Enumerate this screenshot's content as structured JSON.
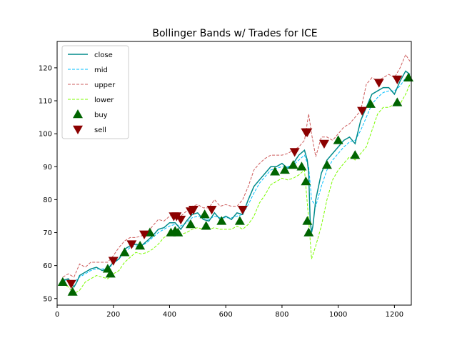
{
  "chart_data": {
    "type": "line",
    "title": "Bollinger Bands w/ Trades for ICE",
    "xlabel": "",
    "ylabel": "",
    "xlim": [
      0,
      1260
    ],
    "ylim": [
      48,
      128
    ],
    "x_ticks": [
      0,
      200,
      400,
      600,
      800,
      1000,
      1200
    ],
    "y_ticks": [
      50,
      60,
      70,
      80,
      90,
      100,
      110,
      120
    ],
    "legend_position": "upper-left",
    "grid": false,
    "colors": {
      "close": "#008b8b",
      "mid": "#00bfff",
      "upper": "#cd5c5c",
      "lower": "#7cfc00",
      "buy": "#006400",
      "sell": "#8b0000"
    },
    "series": [
      {
        "name": "close",
        "style": "solid",
        "key": "close",
        "x": [
          20,
          40,
          60,
          70,
          80,
          100,
          120,
          140,
          160,
          180,
          200,
          220,
          240,
          260,
          280,
          300,
          320,
          340,
          360,
          380,
          400,
          420,
          440,
          460,
          480,
          500,
          520,
          540,
          560,
          580,
          600,
          620,
          640,
          660,
          680,
          700,
          720,
          740,
          760,
          780,
          800,
          820,
          840,
          860,
          880,
          890,
          895,
          900,
          905,
          910,
          920,
          940,
          960,
          980,
          1000,
          1020,
          1040,
          1060,
          1080,
          1100,
          1120,
          1140,
          1160,
          1180,
          1200,
          1220,
          1240,
          1255
        ],
        "y": [
          55.5,
          56,
          53.5,
          55,
          57,
          58,
          59,
          59.5,
          58.5,
          59,
          61,
          62,
          65,
          66,
          66.5,
          66,
          67.5,
          69,
          71,
          71.5,
          73,
          73,
          71,
          73.5,
          75.5,
          76,
          74,
          73.5,
          76,
          74,
          75,
          74,
          76,
          75.5,
          80,
          84,
          86,
          88,
          90,
          90,
          91,
          89.5,
          91,
          93.5,
          95,
          92,
          88,
          74,
          70,
          72,
          80,
          88,
          92,
          94,
          96,
          98,
          99,
          97,
          104,
          108,
          112,
          113,
          114,
          114,
          112,
          116,
          119,
          118
        ]
      },
      {
        "name": "mid",
        "style": "dashed",
        "key": "mid",
        "x": [
          20,
          40,
          60,
          80,
          100,
          120,
          140,
          160,
          180,
          200,
          220,
          240,
          260,
          280,
          300,
          320,
          340,
          360,
          380,
          400,
          420,
          440,
          460,
          480,
          500,
          520,
          540,
          560,
          580,
          600,
          620,
          640,
          660,
          680,
          700,
          720,
          740,
          760,
          780,
          800,
          820,
          840,
          860,
          880,
          895,
          905,
          920,
          940,
          960,
          980,
          1000,
          1020,
          1040,
          1060,
          1080,
          1100,
          1120,
          1140,
          1160,
          1180,
          1200,
          1220,
          1240,
          1255
        ],
        "y": [
          55.5,
          55.5,
          55,
          56.5,
          57.5,
          58.5,
          59,
          59,
          59,
          60.5,
          62,
          64,
          65.5,
          66,
          66,
          67,
          68.5,
          70,
          71,
          72,
          72.5,
          72,
          73,
          74.5,
          75,
          74.5,
          74,
          75,
          74.5,
          74.5,
          74.5,
          75,
          75.5,
          78.5,
          82,
          85,
          87,
          89,
          89.5,
          90,
          90,
          90.5,
          92,
          93.5,
          90,
          80,
          78,
          84,
          89,
          92,
          94,
          96,
          97.5,
          98,
          101,
          105,
          109,
          111,
          112.5,
          113,
          113,
          114.5,
          117,
          118
        ]
      },
      {
        "name": "upper",
        "style": "dashed",
        "key": "upper",
        "x": [
          20,
          40,
          60,
          80,
          100,
          120,
          140,
          160,
          180,
          200,
          220,
          240,
          260,
          280,
          300,
          320,
          340,
          360,
          380,
          400,
          420,
          440,
          460,
          480,
          500,
          520,
          540,
          560,
          580,
          600,
          620,
          640,
          660,
          680,
          700,
          720,
          740,
          760,
          780,
          800,
          820,
          840,
          860,
          880,
          895,
          905,
          920,
          940,
          960,
          980,
          1000,
          1020,
          1040,
          1060,
          1080,
          1100,
          1120,
          1140,
          1160,
          1180,
          1200,
          1220,
          1240,
          1255
        ],
        "y": [
          56.5,
          57.5,
          56.5,
          60.5,
          59.5,
          61,
          61,
          61,
          61,
          63,
          65.5,
          67.5,
          68.5,
          68.5,
          69,
          70,
          72,
          74,
          73.5,
          75,
          76,
          75,
          76.5,
          78,
          78.5,
          77.5,
          77.5,
          80,
          78,
          78.5,
          78,
          78,
          80,
          84,
          89,
          91,
          92.5,
          93.5,
          93.5,
          93.5,
          94,
          95,
          96,
          98,
          106,
          100,
          93,
          99,
          99,
          98,
          100,
          102,
          103,
          105,
          107,
          115,
          117,
          116,
          117,
          118,
          117,
          120,
          124,
          122
        ]
      },
      {
        "name": "lower",
        "style": "dashed",
        "key": "lower",
        "x": [
          20,
          40,
          60,
          80,
          100,
          120,
          140,
          160,
          180,
          200,
          220,
          240,
          260,
          280,
          300,
          320,
          340,
          360,
          380,
          400,
          420,
          440,
          460,
          480,
          500,
          520,
          540,
          560,
          580,
          600,
          620,
          640,
          660,
          680,
          700,
          720,
          740,
          760,
          780,
          800,
          820,
          840,
          860,
          880,
          895,
          905,
          920,
          940,
          960,
          980,
          1000,
          1020,
          1040,
          1060,
          1080,
          1100,
          1120,
          1140,
          1160,
          1180,
          1200,
          1220,
          1240,
          1255
        ],
        "y": [
          54.5,
          53.5,
          51.5,
          52.5,
          55,
          56,
          57,
          56.5,
          56,
          57.5,
          58.5,
          61,
          62.5,
          64,
          63.5,
          64,
          65,
          66.5,
          68.5,
          69.5,
          69.5,
          69.5,
          70,
          71,
          71.5,
          71,
          71,
          71.5,
          71,
          71,
          71,
          72,
          71,
          72.5,
          75,
          79,
          81.5,
          84.5,
          85.5,
          86.5,
          86,
          86.5,
          87.5,
          89,
          74,
          62,
          66,
          72,
          80,
          86,
          89,
          91,
          93,
          92,
          94,
          96,
          101,
          106,
          108,
          108,
          109,
          109,
          112,
          115
        ]
      }
    ],
    "buy_signals": {
      "name": "buy",
      "x": [
        20,
        55,
        180,
        190,
        240,
        295,
        330,
        405,
        420,
        430,
        475,
        525,
        530,
        585,
        650,
        775,
        810,
        840,
        870,
        885,
        890,
        895,
        960,
        1000,
        1060,
        1115,
        1210,
        1250
      ],
      "y": [
        55,
        52,
        59,
        57.5,
        64,
        66,
        70,
        70,
        70.5,
        70,
        72.5,
        75.5,
        72,
        73.5,
        73.5,
        88.5,
        89,
        90.5,
        90,
        85.5,
        73.5,
        70,
        90.5,
        98,
        93.5,
        109,
        109.5,
        117
      ]
    },
    "sell_signals": {
      "name": "sell",
      "x": [
        50,
        200,
        265,
        310,
        415,
        425,
        440,
        475,
        485,
        550,
        660,
        845,
        885,
        890,
        950,
        1085,
        1145,
        1210
      ],
      "y": [
        54.5,
        61.5,
        66.5,
        69.5,
        75,
        75,
        74,
        76.5,
        77,
        77,
        77,
        94.5,
        100.5,
        100.5,
        97,
        107,
        115.5,
        116.5
      ]
    }
  }
}
